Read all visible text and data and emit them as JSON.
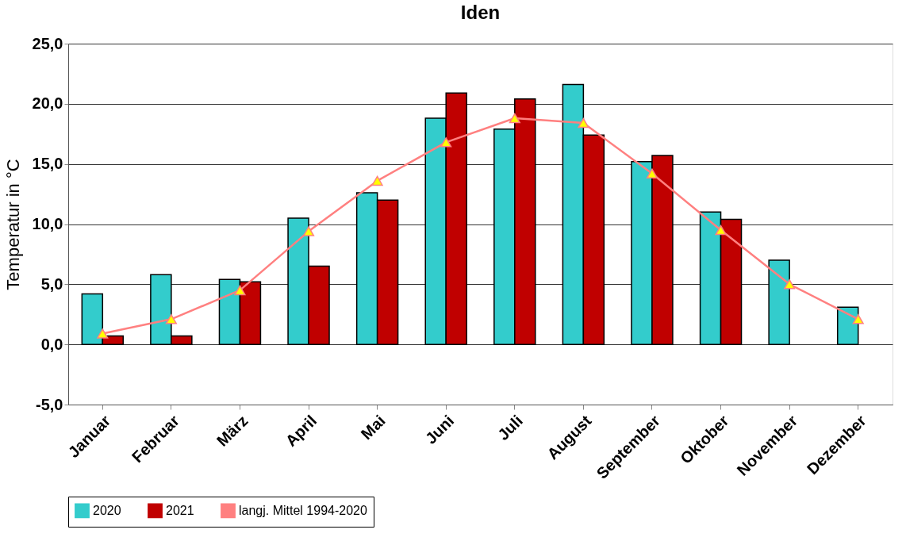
{
  "chart_data": {
    "type": "bar",
    "title": "Iden",
    "ylabel": "Temperatur in °C",
    "categories": [
      "Januar",
      "Februar",
      "März",
      "April",
      "Mai",
      "Juni",
      "Juli",
      "August",
      "September",
      "Oktober",
      "November",
      "Dezember"
    ],
    "series": [
      {
        "name": "2020",
        "color": "#33cccc",
        "values": [
          4.2,
          5.8,
          5.4,
          10.5,
          12.6,
          18.8,
          17.9,
          21.6,
          15.2,
          11.0,
          7.0,
          3.1
        ]
      },
      {
        "name": "2021",
        "color": "#c00000",
        "values": [
          0.7,
          0.7,
          5.2,
          6.5,
          12.0,
          20.9,
          20.4,
          17.4,
          15.7,
          10.4,
          null,
          null
        ]
      },
      {
        "name": "langj. Mittel 1994-2020",
        "type": "line",
        "color": "#ff8080",
        "marker": "triangle",
        "values": [
          0.9,
          2.1,
          4.5,
          9.4,
          13.6,
          16.8,
          18.8,
          18.4,
          14.2,
          9.5,
          5.0,
          2.1
        ]
      }
    ],
    "ylim": [
      -5,
      25
    ],
    "yticks": [
      {
        "value": -5,
        "label": "-5,0"
      },
      {
        "value": 0,
        "label": "0,0"
      },
      {
        "value": 5,
        "label": "5,0"
      },
      {
        "value": 10,
        "label": "10,0"
      },
      {
        "value": 15,
        "label": "15,0"
      },
      {
        "value": 20,
        "label": "20,0"
      },
      {
        "value": 25,
        "label": "25,0"
      }
    ],
    "grid": "y",
    "legend": "bottom"
  }
}
